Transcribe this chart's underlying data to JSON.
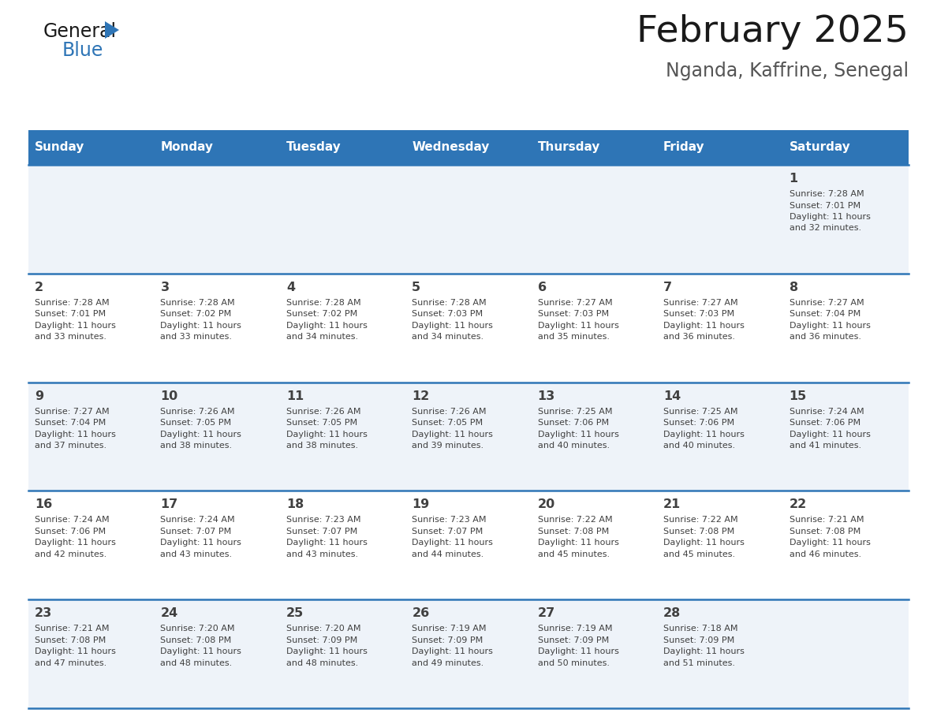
{
  "title": "February 2025",
  "subtitle": "Nganda, Kaffrine, Senegal",
  "header_bg": "#2E75B6",
  "header_text_color": "#FFFFFF",
  "days_of_week": [
    "Sunday",
    "Monday",
    "Tuesday",
    "Wednesday",
    "Thursday",
    "Friday",
    "Saturday"
  ],
  "row_bg_light": "#EEF3F9",
  "row_bg_white": "#FFFFFF",
  "separator_color": "#2E75B6",
  "cell_text_color": "#404040",
  "calendar_data": [
    [
      null,
      null,
      null,
      null,
      null,
      null,
      {
        "day": 1,
        "sunrise": "7:28 AM",
        "sunset": "7:01 PM",
        "daylight_hours": 11,
        "daylight_minutes": 32
      }
    ],
    [
      {
        "day": 2,
        "sunrise": "7:28 AM",
        "sunset": "7:01 PM",
        "daylight_hours": 11,
        "daylight_minutes": 33
      },
      {
        "day": 3,
        "sunrise": "7:28 AM",
        "sunset": "7:02 PM",
        "daylight_hours": 11,
        "daylight_minutes": 33
      },
      {
        "day": 4,
        "sunrise": "7:28 AM",
        "sunset": "7:02 PM",
        "daylight_hours": 11,
        "daylight_minutes": 34
      },
      {
        "day": 5,
        "sunrise": "7:28 AM",
        "sunset": "7:03 PM",
        "daylight_hours": 11,
        "daylight_minutes": 34
      },
      {
        "day": 6,
        "sunrise": "7:27 AM",
        "sunset": "7:03 PM",
        "daylight_hours": 11,
        "daylight_minutes": 35
      },
      {
        "day": 7,
        "sunrise": "7:27 AM",
        "sunset": "7:03 PM",
        "daylight_hours": 11,
        "daylight_minutes": 36
      },
      {
        "day": 8,
        "sunrise": "7:27 AM",
        "sunset": "7:04 PM",
        "daylight_hours": 11,
        "daylight_minutes": 36
      }
    ],
    [
      {
        "day": 9,
        "sunrise": "7:27 AM",
        "sunset": "7:04 PM",
        "daylight_hours": 11,
        "daylight_minutes": 37
      },
      {
        "day": 10,
        "sunrise": "7:26 AM",
        "sunset": "7:05 PM",
        "daylight_hours": 11,
        "daylight_minutes": 38
      },
      {
        "day": 11,
        "sunrise": "7:26 AM",
        "sunset": "7:05 PM",
        "daylight_hours": 11,
        "daylight_minutes": 38
      },
      {
        "day": 12,
        "sunrise": "7:26 AM",
        "sunset": "7:05 PM",
        "daylight_hours": 11,
        "daylight_minutes": 39
      },
      {
        "day": 13,
        "sunrise": "7:25 AM",
        "sunset": "7:06 PM",
        "daylight_hours": 11,
        "daylight_minutes": 40
      },
      {
        "day": 14,
        "sunrise": "7:25 AM",
        "sunset": "7:06 PM",
        "daylight_hours": 11,
        "daylight_minutes": 40
      },
      {
        "day": 15,
        "sunrise": "7:24 AM",
        "sunset": "7:06 PM",
        "daylight_hours": 11,
        "daylight_minutes": 41
      }
    ],
    [
      {
        "day": 16,
        "sunrise": "7:24 AM",
        "sunset": "7:06 PM",
        "daylight_hours": 11,
        "daylight_minutes": 42
      },
      {
        "day": 17,
        "sunrise": "7:24 AM",
        "sunset": "7:07 PM",
        "daylight_hours": 11,
        "daylight_minutes": 43
      },
      {
        "day": 18,
        "sunrise": "7:23 AM",
        "sunset": "7:07 PM",
        "daylight_hours": 11,
        "daylight_minutes": 43
      },
      {
        "day": 19,
        "sunrise": "7:23 AM",
        "sunset": "7:07 PM",
        "daylight_hours": 11,
        "daylight_minutes": 44
      },
      {
        "day": 20,
        "sunrise": "7:22 AM",
        "sunset": "7:08 PM",
        "daylight_hours": 11,
        "daylight_minutes": 45
      },
      {
        "day": 21,
        "sunrise": "7:22 AM",
        "sunset": "7:08 PM",
        "daylight_hours": 11,
        "daylight_minutes": 45
      },
      {
        "day": 22,
        "sunrise": "7:21 AM",
        "sunset": "7:08 PM",
        "daylight_hours": 11,
        "daylight_minutes": 46
      }
    ],
    [
      {
        "day": 23,
        "sunrise": "7:21 AM",
        "sunset": "7:08 PM",
        "daylight_hours": 11,
        "daylight_minutes": 47
      },
      {
        "day": 24,
        "sunrise": "7:20 AM",
        "sunset": "7:08 PM",
        "daylight_hours": 11,
        "daylight_minutes": 48
      },
      {
        "day": 25,
        "sunrise": "7:20 AM",
        "sunset": "7:09 PM",
        "daylight_hours": 11,
        "daylight_minutes": 48
      },
      {
        "day": 26,
        "sunrise": "7:19 AM",
        "sunset": "7:09 PM",
        "daylight_hours": 11,
        "daylight_minutes": 49
      },
      {
        "day": 27,
        "sunrise": "7:19 AM",
        "sunset": "7:09 PM",
        "daylight_hours": 11,
        "daylight_minutes": 50
      },
      {
        "day": 28,
        "sunrise": "7:18 AM",
        "sunset": "7:09 PM",
        "daylight_hours": 11,
        "daylight_minutes": 51
      },
      null
    ]
  ],
  "logo_general_color": "#1a1a1a",
  "logo_blue_color": "#2E75B6",
  "fig_width": 11.88,
  "fig_height": 9.18,
  "dpi": 100
}
